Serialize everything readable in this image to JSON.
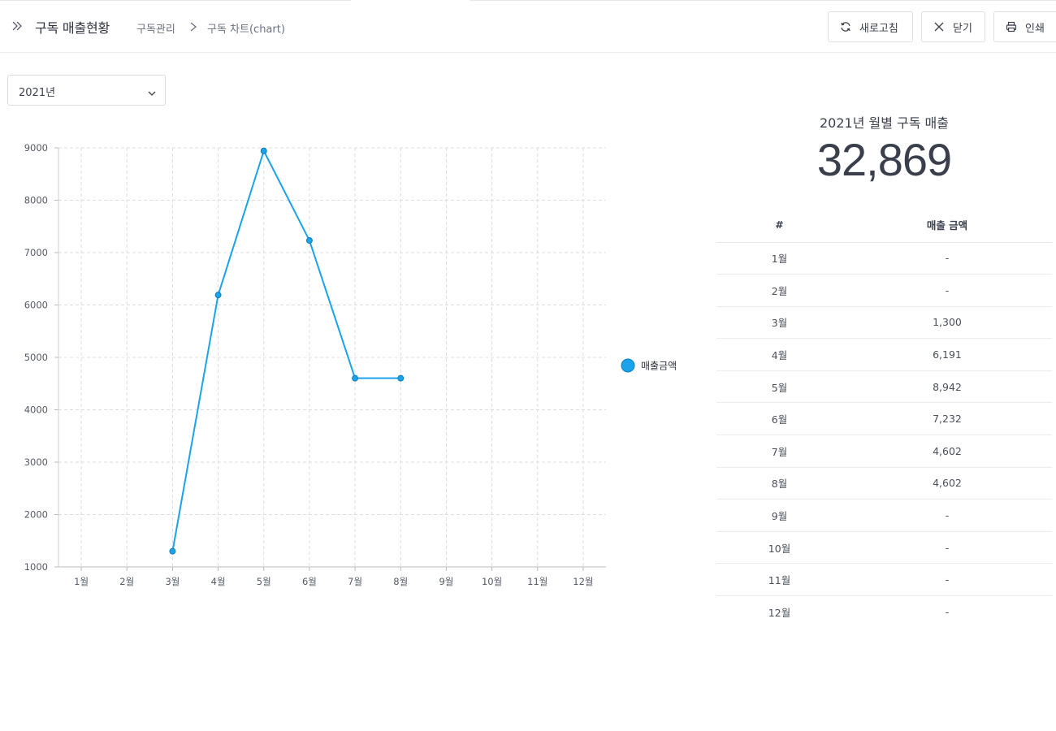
{
  "header": {
    "title": "구독 매출현황",
    "breadcrumb": [
      "구독관리",
      "구독 차트(chart)"
    ],
    "buttons": {
      "refresh": "새로고침",
      "close": "닫기",
      "print": "인쇄"
    }
  },
  "filter": {
    "year_selected": "2021년"
  },
  "summary": {
    "title": "2021년 월별 구독 매출",
    "total": "32,869"
  },
  "table": {
    "headers": [
      "#",
      "매출 금액"
    ],
    "rows": [
      {
        "month": "1월",
        "amount": "-"
      },
      {
        "month": "2월",
        "amount": "-"
      },
      {
        "month": "3월",
        "amount": "1,300"
      },
      {
        "month": "4월",
        "amount": "6,191"
      },
      {
        "month": "5월",
        "amount": "8,942"
      },
      {
        "month": "6월",
        "amount": "7,232"
      },
      {
        "month": "7월",
        "amount": "4,602"
      },
      {
        "month": "8월",
        "amount": "4,602"
      },
      {
        "month": "9월",
        "amount": "-"
      },
      {
        "month": "10월",
        "amount": "-"
      },
      {
        "month": "11월",
        "amount": "-"
      },
      {
        "month": "12월",
        "amount": "-"
      }
    ]
  },
  "colors": {
    "series": "#1aa3e8",
    "text": "#3a3f4b",
    "grid": "#dddddd"
  },
  "chart_data": {
    "type": "line",
    "categories": [
      "1월",
      "2월",
      "3월",
      "4월",
      "5월",
      "6월",
      "7월",
      "8월",
      "9월",
      "10월",
      "11월",
      "12월"
    ],
    "series": [
      {
        "name": "매출금액",
        "values": [
          null,
          null,
          1300,
          6191,
          8942,
          7232,
          4602,
          4602,
          null,
          null,
          null,
          null
        ]
      }
    ],
    "ylim": [
      1000,
      9000
    ],
    "yticks": [
      1000,
      2000,
      3000,
      4000,
      5000,
      6000,
      7000,
      8000,
      9000
    ],
    "grid": true,
    "legend_position": "right"
  }
}
